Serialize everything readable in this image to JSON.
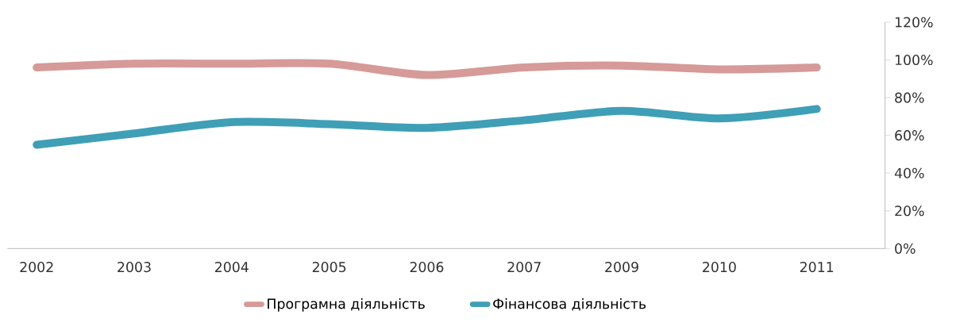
{
  "chart_data": {
    "type": "line",
    "categories": [
      "2002",
      "2003",
      "2004",
      "2005",
      "2006",
      "2007",
      "2009",
      "2010",
      "2011"
    ],
    "series": [
      {
        "name": "Програмна діяльність",
        "color": "#d69a98",
        "values": [
          96,
          98,
          98,
          98,
          92,
          96,
          97,
          95,
          96
        ]
      },
      {
        "name": "Фінансова діяльність",
        "color": "#3f9fb6",
        "values": [
          55,
          61,
          67,
          66,
          64,
          68,
          73,
          69,
          74
        ]
      }
    ],
    "ylim": [
      0,
      120
    ],
    "yticks": [
      {
        "value": 0,
        "label": "0%"
      },
      {
        "value": 20,
        "label": "20%"
      },
      {
        "value": 40,
        "label": "40%"
      },
      {
        "value": 60,
        "label": "60%"
      },
      {
        "value": 80,
        "label": "80%"
      },
      {
        "value": 100,
        "label": "100%"
      },
      {
        "value": 120,
        "label": "120%"
      }
    ],
    "grid": false,
    "legend": "bottom",
    "marker": "none",
    "line_style": "solid"
  }
}
